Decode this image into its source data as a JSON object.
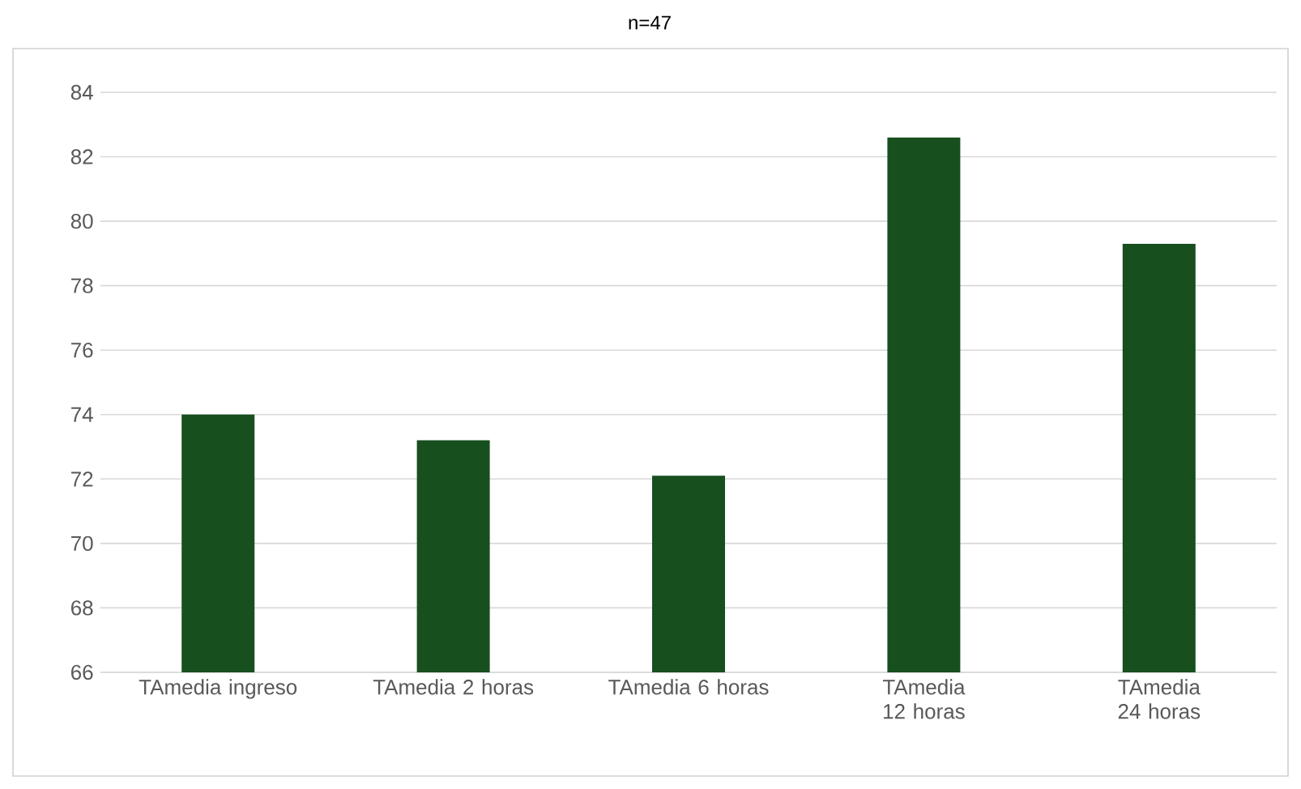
{
  "chart_data": {
    "type": "bar",
    "title": "n=47",
    "categories": [
      "TAmedia ingreso",
      "TAmedia 2 horas",
      "TAmedia 6 horas",
      "TAmedia 12 horas",
      "TAmedia 24 horas"
    ],
    "values": [
      74.0,
      73.2,
      72.1,
      82.6,
      79.3
    ],
    "color": "#174f1f",
    "ylim": [
      66,
      84
    ],
    "yticks": [
      66,
      68,
      70,
      72,
      74,
      76,
      78,
      80,
      82,
      84
    ],
    "grid": "y"
  }
}
